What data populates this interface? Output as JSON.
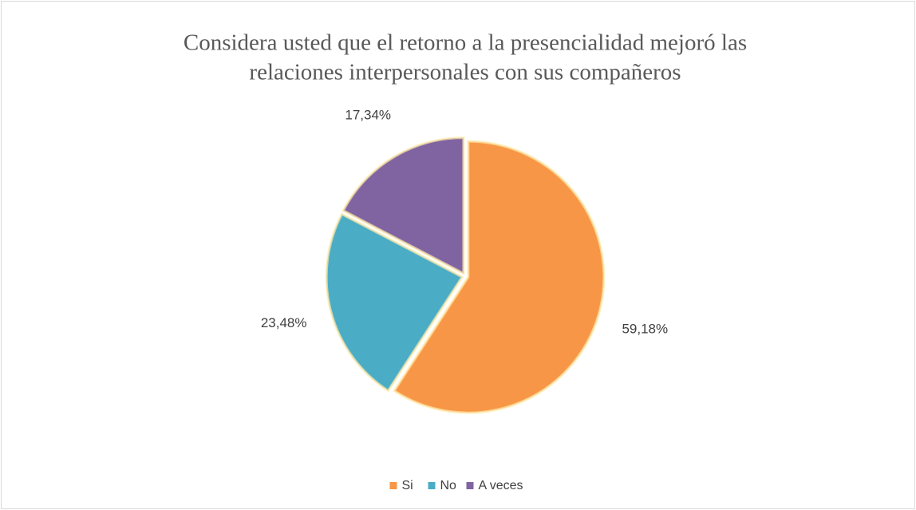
{
  "chart_data": {
    "type": "pie",
    "title": [
      "Considera usted que el retorno a la presencialidad mejoró las",
      "relaciones interpersonales con sus compañeros"
    ],
    "categories": [
      "Si",
      "No",
      "A veces"
    ],
    "values": [
      59.18,
      23.48,
      17.34
    ],
    "value_labels": [
      "59,18%",
      "23,48%",
      "17,34%"
    ],
    "colors": [
      "#f79646",
      "#4bacc6",
      "#8064a2"
    ],
    "legend": "bottom"
  }
}
